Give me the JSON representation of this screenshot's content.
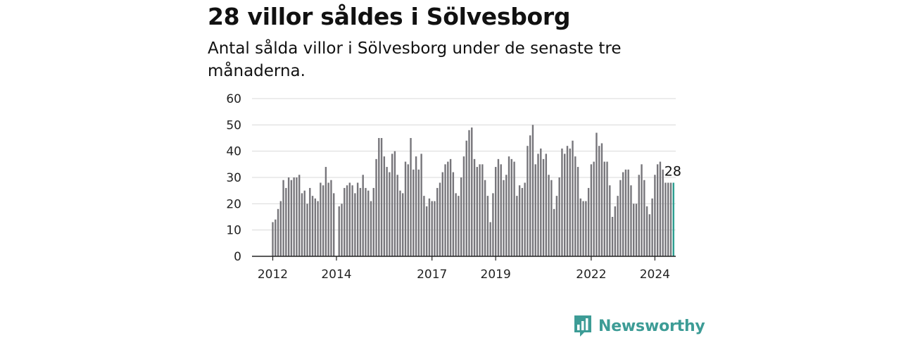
{
  "title": "28 villor såldes i Sölvesborg",
  "subtitle": "Antal sålda villor i Sölvesborg under de senaste tre månaderna.",
  "brand": {
    "name": "Newsworthy",
    "icon": "newsworthy-logo-icon",
    "color": "#3d9c96"
  },
  "colors": {
    "bar": "#77767b",
    "highlight": "#2a9d8f",
    "grid": "#d9d9d9",
    "axis": "#222222"
  },
  "chart_data": {
    "type": "bar",
    "ylim": [
      0,
      60
    ],
    "yticks": [
      0,
      10,
      20,
      30,
      40,
      50,
      60
    ],
    "xticks": [
      "2012",
      "2014",
      "2017",
      "2019",
      "2022",
      "2024"
    ],
    "x_start": "2012-01",
    "grid": true,
    "highlight_label": "28",
    "values": [
      13,
      14,
      18,
      21,
      29,
      26,
      30,
      29,
      30,
      30,
      31,
      24,
      25,
      20,
      26,
      23,
      22,
      21,
      28,
      27,
      34,
      28,
      29,
      24,
      null,
      19,
      20,
      26,
      27,
      28,
      27,
      24,
      28,
      26,
      31,
      26,
      25,
      21,
      26,
      37,
      45,
      45,
      38,
      34,
      32,
      39,
      40,
      31,
      25,
      24,
      36,
      35,
      45,
      33,
      38,
      33,
      39,
      23,
      19,
      22,
      21,
      21,
      26,
      28,
      32,
      35,
      36,
      37,
      32,
      24,
      23,
      30,
      38,
      44,
      48,
      49,
      37,
      34,
      35,
      35,
      29,
      23,
      13,
      24,
      34,
      37,
      35,
      29,
      31,
      38,
      37,
      36,
      23,
      27,
      26,
      28,
      42,
      46,
      50,
      35,
      39,
      41,
      37,
      39,
      31,
      29,
      18,
      23,
      30,
      41,
      39,
      42,
      41,
      44,
      38,
      34,
      22,
      21,
      21,
      26,
      35,
      36,
      47,
      42,
      43,
      36,
      36,
      27,
      15,
      19,
      23,
      29,
      32,
      33,
      33,
      27,
      20,
      20,
      31,
      35,
      29,
      19,
      16,
      22,
      31,
      35,
      36,
      33,
      28,
      28,
      28,
      28
    ]
  }
}
